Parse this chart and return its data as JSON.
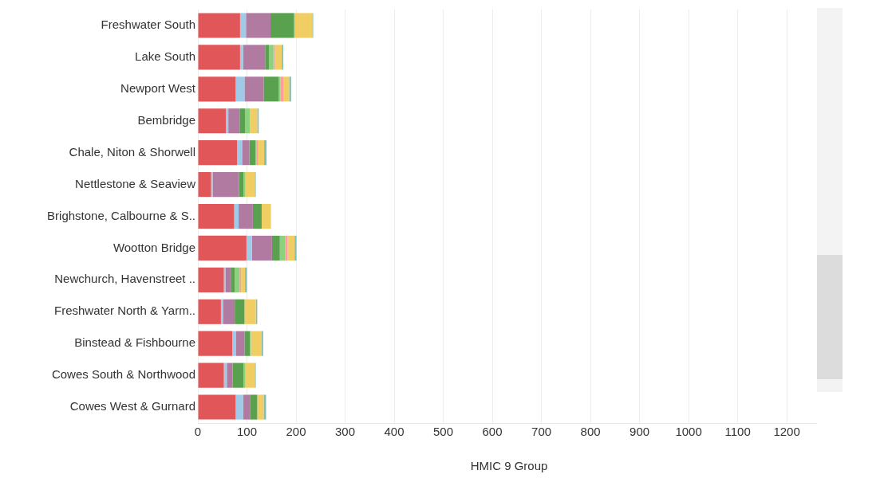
{
  "chart_data": {
    "type": "bar",
    "orientation": "horizontal",
    "stacked": true,
    "xlabel": "HMIC 9 Group",
    "categories": [
      "Freshwater South",
      "Lake South",
      "Newport West",
      "Bembridge",
      "Chale, Niton & Shorwell",
      "Nettlestone & Seaview",
      "Brighstone, Calbourne & S..",
      "Wootton Bridge",
      "Newchurch, Havenstreet ..",
      "Freshwater North & Yarm..",
      "Binstead & Fishbourne",
      "Cowes South & Northwood",
      "Cowes West & Gurnard"
    ],
    "series": [
      {
        "color": "#e15759",
        "values": [
          86,
          86,
          77,
          57,
          80,
          27,
          74,
          99,
          53,
          47,
          70,
          53,
          77
        ]
      },
      {
        "color": "#a0cbe8",
        "values": [
          12,
          6,
          18,
          5,
          10,
          3,
          9,
          11,
          3,
          4,
          8,
          6,
          15
        ]
      },
      {
        "color": "#b07aa1",
        "values": [
          50,
          45,
          39,
          23,
          15,
          54,
          29,
          41,
          11,
          24,
          17,
          12,
          15
        ]
      },
      {
        "color": "#59a14f",
        "values": [
          48,
          8,
          31,
          11,
          12,
          9,
          18,
          16,
          8,
          20,
          11,
          22,
          14
        ]
      },
      {
        "color": "#8cd17d",
        "values": [
          2,
          9,
          3,
          10,
          2,
          4,
          0,
          11,
          10,
          0,
          2,
          4,
          0
        ]
      },
      {
        "color": "#ff9d9a",
        "values": [
          0,
          3,
          6,
          0,
          3,
          0,
          0,
          5,
          3,
          0,
          0,
          0,
          0
        ]
      },
      {
        "color": "#f1ce63",
        "values": [
          35,
          14,
          12,
          15,
          13,
          19,
          19,
          14,
          8,
          23,
          22,
          19,
          13
        ]
      },
      {
        "color": "#86bcb6",
        "values": [
          2,
          3,
          4,
          3,
          5,
          2,
          0,
          4,
          4,
          3,
          3,
          2,
          5
        ]
      }
    ],
    "xlim": [
      0,
      1260
    ],
    "xticks": [
      0,
      100,
      200,
      300,
      400,
      500,
      600,
      700,
      800,
      900,
      1000,
      1100,
      1200
    ],
    "grid": "x",
    "legend": false
  }
}
